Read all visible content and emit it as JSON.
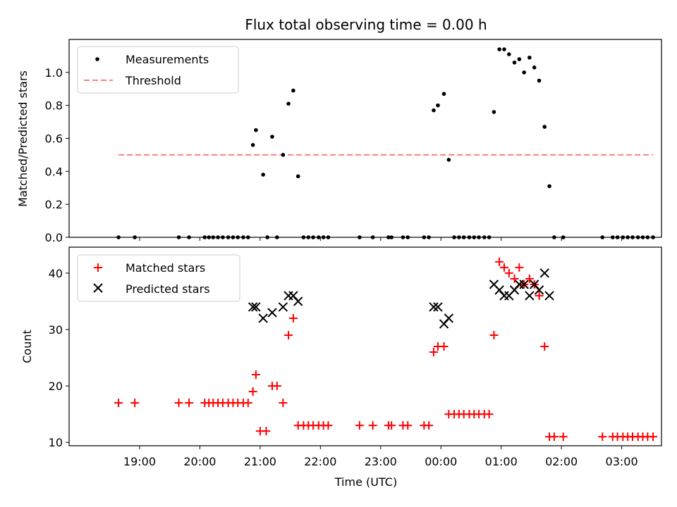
{
  "title": "Flux total observing time = 0.00 h",
  "xlabel": "Time (UTC)",
  "xticks": [
    "19:00",
    "20:00",
    "21:00",
    "22:00",
    "23:00",
    "00:00",
    "01:00",
    "02:00",
    "03:00"
  ],
  "xticks_hours": [
    19,
    20,
    21,
    22,
    23,
    24,
    25,
    26,
    27
  ],
  "xlim_hours": [
    17.83,
    27.66
  ],
  "top": {
    "ylabel": "Matched/Predicted stars",
    "ylim": [
      0,
      1.2
    ],
    "yticks": [
      "0.0",
      "0.2",
      "0.4",
      "0.6",
      "0.8",
      "1.0"
    ],
    "legend": {
      "measurements": "Measurements",
      "threshold": "Threshold"
    }
  },
  "bottom": {
    "ylabel": "Count",
    "ylim": [
      9.4,
      44.6
    ],
    "yticks": [
      "10",
      "20",
      "30",
      "40"
    ],
    "legend": {
      "matched": "Matched stars",
      "predicted": "Predicted stars"
    }
  },
  "colors": {
    "measurements": "#000000",
    "threshold": "#ff7f7f",
    "matched": "#ff0000",
    "predicted": "#000000"
  },
  "chart_data": [
    {
      "type": "scatter",
      "title": "Flux total observing time = 0.00 h",
      "xlabel": "",
      "ylabel": "Matched/Predicted stars",
      "x_unit": "hours UTC (values above 24 are after midnight)",
      "ylim": [
        0,
        1.2
      ],
      "series": [
        {
          "name": "Measurements",
          "x": [
            18.65,
            18.92,
            19.65,
            19.82,
            20.08,
            20.15,
            20.22,
            20.3,
            20.38,
            20.47,
            20.55,
            20.63,
            20.72,
            20.8,
            20.88,
            20.93,
            21.05,
            21.12,
            21.2,
            21.28,
            21.38,
            21.47,
            21.55,
            21.63,
            21.72,
            21.8,
            21.88,
            21.97,
            22.05,
            22.13,
            22.65,
            22.87,
            23.13,
            23.18,
            23.37,
            23.45,
            23.72,
            23.8,
            23.88,
            23.95,
            24.05,
            24.13,
            24.22,
            24.3,
            24.38,
            24.47,
            24.55,
            24.63,
            24.72,
            24.8,
            24.88,
            24.97,
            25.05,
            25.13,
            25.22,
            25.3,
            25.38,
            25.47,
            25.55,
            25.63,
            25.72,
            25.8,
            25.88,
            26.03,
            26.68,
            26.85,
            26.93,
            27.02,
            27.1,
            27.18,
            27.27,
            27.35,
            27.43,
            27.52
          ],
          "y": [
            0,
            0,
            0,
            0,
            0,
            0,
            0,
            0,
            0,
            0,
            0,
            0,
            0,
            0,
            0.56,
            0.65,
            0.38,
            0,
            0.61,
            0,
            0.5,
            0.81,
            0.89,
            0.37,
            0,
            0,
            0,
            0,
            0,
            0,
            0,
            0,
            0,
            0,
            0,
            0,
            0,
            0,
            0.77,
            0.8,
            0.87,
            0.47,
            0,
            0,
            0,
            0,
            0,
            0,
            0,
            0,
            0.76,
            1.14,
            1.14,
            1.11,
            1.06,
            1.08,
            1.0,
            1.09,
            1.03,
            0.95,
            0.67,
            0.31,
            0,
            0,
            0,
            0,
            0,
            0,
            0,
            0,
            0,
            0,
            0,
            0
          ]
        },
        {
          "name": "Threshold",
          "type": "line",
          "x": [
            18.65,
            27.52
          ],
          "y": [
            0.5,
            0.5
          ]
        }
      ]
    },
    {
      "type": "scatter",
      "xlabel": "Time (UTC)",
      "ylabel": "Count",
      "x_unit": "hours UTC (values above 24 are after midnight)",
      "ylim": [
        9.4,
        44.6
      ],
      "series": [
        {
          "name": "Matched stars",
          "x": [
            18.65,
            18.92,
            19.65,
            19.82,
            20.08,
            20.15,
            20.22,
            20.3,
            20.38,
            20.47,
            20.55,
            20.63,
            20.72,
            20.8,
            20.88,
            20.93,
            21.0,
            21.1,
            21.2,
            21.28,
            21.38,
            21.47,
            21.55,
            21.63,
            21.72,
            21.8,
            21.88,
            21.97,
            22.05,
            22.13,
            22.65,
            22.87,
            23.13,
            23.18,
            23.37,
            23.45,
            23.72,
            23.8,
            23.88,
            23.95,
            24.05,
            24.13,
            24.22,
            24.3,
            24.38,
            24.47,
            24.55,
            24.63,
            24.72,
            24.8,
            24.88,
            24.97,
            25.05,
            25.13,
            25.22,
            25.3,
            25.38,
            25.47,
            25.55,
            25.63,
            25.72,
            25.8,
            25.88,
            26.03,
            26.68,
            26.85,
            26.93,
            27.02,
            27.1,
            27.18,
            27.27,
            27.35,
            27.43,
            27.52
          ],
          "y": [
            17,
            17,
            17,
            17,
            17,
            17,
            17,
            17,
            17,
            17,
            17,
            17,
            17,
            17,
            19,
            22,
            12,
            12,
            20,
            20,
            17,
            29,
            32,
            13,
            13,
            13,
            13,
            13,
            13,
            13,
            13,
            13,
            13,
            13,
            13,
            13,
            13,
            13,
            26,
            27,
            27,
            15,
            15,
            15,
            15,
            15,
            15,
            15,
            15,
            15,
            29,
            42,
            41,
            40,
            39,
            41,
            38,
            39,
            38,
            36,
            27,
            11,
            11,
            11,
            11,
            11,
            11,
            11,
            11,
            11,
            11,
            11,
            11,
            11
          ]
        },
        {
          "name": "Predicted stars",
          "x": [
            20.88,
            20.93,
            21.05,
            21.2,
            21.38,
            21.47,
            21.55,
            21.63,
            23.88,
            23.95,
            24.05,
            24.13,
            24.88,
            24.97,
            25.05,
            25.13,
            25.22,
            25.3,
            25.38,
            25.47,
            25.55,
            25.63,
            25.72,
            25.8
          ],
          "y": [
            34,
            34,
            32,
            33,
            34,
            36,
            36,
            35,
            34,
            34,
            31,
            32,
            38,
            37,
            36,
            36,
            37,
            38,
            38,
            36,
            38,
            37,
            40,
            36
          ]
        }
      ]
    }
  ]
}
